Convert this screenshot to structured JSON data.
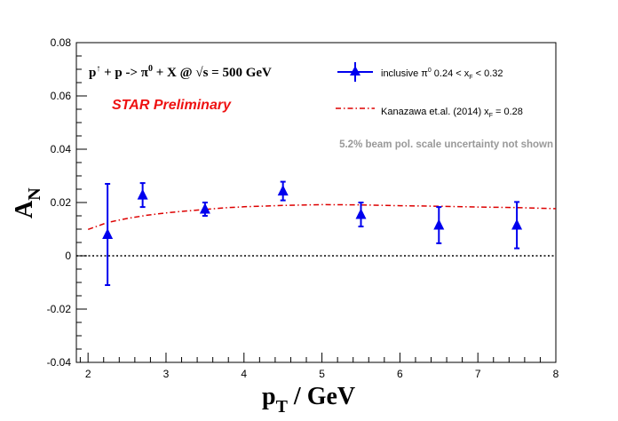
{
  "chart_data": {
    "type": "scatter",
    "reaction": {
      "main": "p",
      "sup_arrow": "↑",
      "rest1": " + p ->  π",
      "sup0": "0",
      "rest2": " + X @  ",
      "sqrt": "√s",
      "rest3": " = 500 GeV"
    },
    "preliminary_label": "STAR Preliminary",
    "uncertainty_note": "5.2% beam pol. scale uncertainty not shown",
    "xlabel": {
      "main": "p",
      "sub": "T",
      "rest": " / GeV"
    },
    "ylabel": {
      "main": "A",
      "sub": "N"
    },
    "xlim": [
      1.85,
      8.0
    ],
    "ylim": [
      -0.04,
      0.08
    ],
    "x_ticks": [
      "2",
      "3",
      "4",
      "5",
      "6",
      "7",
      "8"
    ],
    "y_ticks": [
      "-0.04",
      "-0.02",
      "0",
      "0.02",
      "0.04",
      "0.06",
      "0.08"
    ],
    "legend": {
      "placement": "top-right",
      "data_label": {
        "a": "inclusive π",
        "b": "0",
        "c": " 0.24 < x",
        "d": "F",
        "e": " < 0.32"
      },
      "theory_label": {
        "a": "Kanazawa et.al. (2014) x",
        "b": "F",
        "c": " = 0.28"
      }
    },
    "series": [
      {
        "name": "inclusive π0 0.24 < xF < 0.32",
        "color": "#0000ee",
        "points": [
          {
            "x": 2.25,
            "y": 0.008,
            "err": 0.019
          },
          {
            "x": 2.7,
            "y": 0.0228,
            "err": 0.0045
          },
          {
            "x": 3.5,
            "y": 0.0175,
            "err": 0.0025
          },
          {
            "x": 4.5,
            "y": 0.0243,
            "err": 0.0035
          },
          {
            "x": 5.5,
            "y": 0.0155,
            "err": 0.0045
          },
          {
            "x": 6.5,
            "y": 0.0115,
            "err": 0.0068
          },
          {
            "x": 7.5,
            "y": 0.0115,
            "err": 0.0087
          }
        ]
      },
      {
        "name": "Kanazawa et.al. (2014) xF = 0.28",
        "color": "#dd0000",
        "style": "dash-dot",
        "x": [
          2.0,
          2.25,
          2.5,
          2.75,
          3.0,
          3.25,
          3.5,
          3.75,
          4.0,
          4.5,
          5.0,
          5.5,
          6.0,
          6.5,
          7.0,
          7.5,
          8.0
        ],
        "y": [
          0.0099,
          0.0125,
          0.014,
          0.0152,
          0.0161,
          0.0168,
          0.0174,
          0.018,
          0.0184,
          0.0189,
          0.0192,
          0.0191,
          0.0188,
          0.0186,
          0.0183,
          0.0181,
          0.0177
        ]
      }
    ],
    "zero_line": true
  }
}
